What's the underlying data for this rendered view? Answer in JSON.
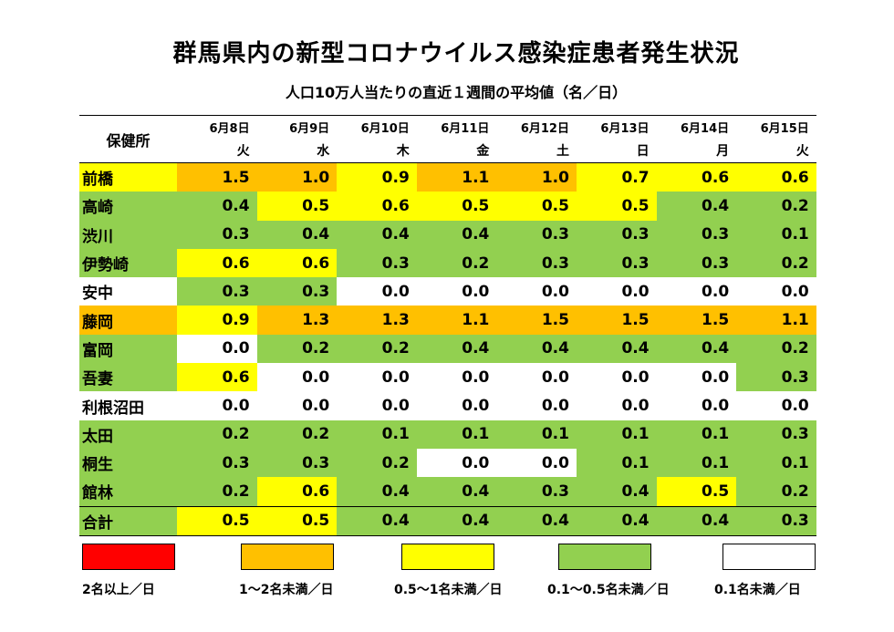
{
  "title": "群馬県内の新型コロナウイルス感染症患者発生状況",
  "subtitle": "人口10万人当たりの直近１週間の平均値（名／日）",
  "table": {
    "corner": "保健所",
    "dates": [
      "6月8日",
      "6月9日",
      "6月10日",
      "6月11日",
      "6月12日",
      "6月13日",
      "6月14日",
      "6月15日"
    ],
    "weekdays": [
      "火",
      "水",
      "木",
      "金",
      "土",
      "日",
      "月",
      "火"
    ],
    "rows": [
      {
        "name": "前橋",
        "name_color": "#ffff00",
        "values": [
          "1.5",
          "1.0",
          "0.9",
          "1.1",
          "1.0",
          "0.7",
          "0.6",
          "0.6"
        ],
        "colors": [
          "#ffc000",
          "#ffc000",
          "#ffff00",
          "#ffc000",
          "#ffc000",
          "#ffff00",
          "#ffff00",
          "#ffff00"
        ]
      },
      {
        "name": "高崎",
        "name_color": "#92d050",
        "values": [
          "0.4",
          "0.5",
          "0.6",
          "0.5",
          "0.5",
          "0.5",
          "0.4",
          "0.2"
        ],
        "colors": [
          "#92d050",
          "#ffff00",
          "#ffff00",
          "#ffff00",
          "#ffff00",
          "#ffff00",
          "#92d050",
          "#92d050"
        ]
      },
      {
        "name": "渋川",
        "name_color": "#92d050",
        "values": [
          "0.3",
          "0.4",
          "0.4",
          "0.4",
          "0.3",
          "0.3",
          "0.3",
          "0.1"
        ],
        "colors": [
          "#92d050",
          "#92d050",
          "#92d050",
          "#92d050",
          "#92d050",
          "#92d050",
          "#92d050",
          "#92d050"
        ]
      },
      {
        "name": "伊勢崎",
        "name_color": "#92d050",
        "values": [
          "0.6",
          "0.6",
          "0.3",
          "0.2",
          "0.3",
          "0.3",
          "0.3",
          "0.2"
        ],
        "colors": [
          "#ffff00",
          "#ffff00",
          "#92d050",
          "#92d050",
          "#92d050",
          "#92d050",
          "#92d050",
          "#92d050"
        ]
      },
      {
        "name": "安中",
        "name_color": "#ffffff",
        "values": [
          "0.3",
          "0.3",
          "0.0",
          "0.0",
          "0.0",
          "0.0",
          "0.0",
          "0.0"
        ],
        "colors": [
          "#92d050",
          "#92d050",
          "#ffffff",
          "#ffffff",
          "#ffffff",
          "#ffffff",
          "#ffffff",
          "#ffffff"
        ]
      },
      {
        "name": "藤岡",
        "name_color": "#ffc000",
        "values": [
          "0.9",
          "1.3",
          "1.3",
          "1.1",
          "1.5",
          "1.5",
          "1.5",
          "1.1"
        ],
        "colors": [
          "#ffff00",
          "#ffc000",
          "#ffc000",
          "#ffc000",
          "#ffc000",
          "#ffc000",
          "#ffc000",
          "#ffc000"
        ]
      },
      {
        "name": "富岡",
        "name_color": "#92d050",
        "values": [
          "0.0",
          "0.2",
          "0.2",
          "0.4",
          "0.4",
          "0.4",
          "0.4",
          "0.2"
        ],
        "colors": [
          "#ffffff",
          "#92d050",
          "#92d050",
          "#92d050",
          "#92d050",
          "#92d050",
          "#92d050",
          "#92d050"
        ]
      },
      {
        "name": "吾妻",
        "name_color": "#92d050",
        "values": [
          "0.6",
          "0.0",
          "0.0",
          "0.0",
          "0.0",
          "0.0",
          "0.0",
          "0.3"
        ],
        "colors": [
          "#ffff00",
          "#ffffff",
          "#ffffff",
          "#ffffff",
          "#ffffff",
          "#ffffff",
          "#ffffff",
          "#92d050"
        ]
      },
      {
        "name": "利根沼田",
        "name_color": "#ffffff",
        "values": [
          "0.0",
          "0.0",
          "0.0",
          "0.0",
          "0.0",
          "0.0",
          "0.0",
          "0.0"
        ],
        "colors": [
          "#ffffff",
          "#ffffff",
          "#ffffff",
          "#ffffff",
          "#ffffff",
          "#ffffff",
          "#ffffff",
          "#ffffff"
        ]
      },
      {
        "name": "太田",
        "name_color": "#92d050",
        "values": [
          "0.2",
          "0.2",
          "0.1",
          "0.1",
          "0.1",
          "0.1",
          "0.1",
          "0.3"
        ],
        "colors": [
          "#92d050",
          "#92d050",
          "#92d050",
          "#92d050",
          "#92d050",
          "#92d050",
          "#92d050",
          "#92d050"
        ]
      },
      {
        "name": "桐生",
        "name_color": "#92d050",
        "values": [
          "0.3",
          "0.3",
          "0.2",
          "0.0",
          "0.0",
          "0.1",
          "0.1",
          "0.1"
        ],
        "colors": [
          "#92d050",
          "#92d050",
          "#92d050",
          "#ffffff",
          "#ffffff",
          "#92d050",
          "#92d050",
          "#92d050"
        ]
      },
      {
        "name": "館林",
        "name_color": "#92d050",
        "values": [
          "0.2",
          "0.6",
          "0.4",
          "0.4",
          "0.3",
          "0.4",
          "0.5",
          "0.2"
        ],
        "colors": [
          "#92d050",
          "#ffff00",
          "#92d050",
          "#92d050",
          "#92d050",
          "#92d050",
          "#ffff00",
          "#92d050"
        ]
      },
      {
        "name": "合計",
        "name_color": "#92d050",
        "values": [
          "0.5",
          "0.5",
          "0.4",
          "0.4",
          "0.4",
          "0.4",
          "0.4",
          "0.3"
        ],
        "colors": [
          "#ffff00",
          "#ffff00",
          "#92d050",
          "#92d050",
          "#92d050",
          "#92d050",
          "#92d050",
          "#92d050"
        ]
      }
    ]
  },
  "legend": [
    {
      "label": "2名以上／日",
      "color": "#ff0000"
    },
    {
      "label": "1～2名未満／日",
      "color": "#ffc000"
    },
    {
      "label": "0.5～1名未満／日",
      "color": "#ffff00"
    },
    {
      "label": "0.1～0.5名未満／日",
      "color": "#92d050"
    },
    {
      "label": "0.1名未満／日",
      "color": "#ffffff"
    }
  ]
}
